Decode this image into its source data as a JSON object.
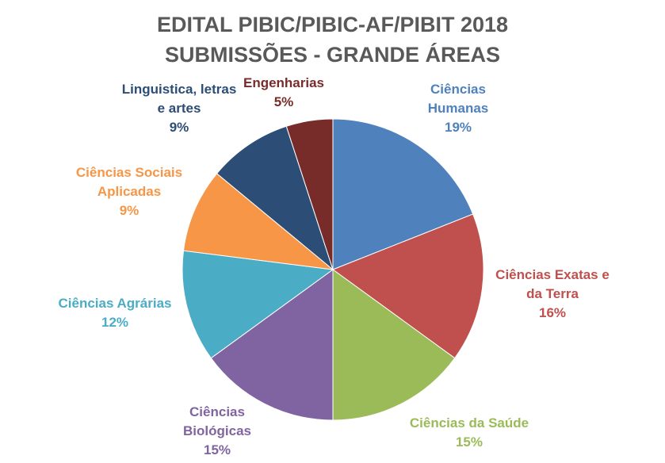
{
  "chart_data": {
    "type": "pie",
    "title": [
      "EDITAL PIBIC/PIBIC-AF/PIBIT 2018",
      "SUBMISSÕES - GRANDE ÁREAS"
    ],
    "start_angle": "top",
    "direction": "clockwise",
    "slices": [
      {
        "label": [
          "Ciências",
          "Humanas"
        ],
        "value": 19,
        "value_label": "19%",
        "color": "#4F81BD"
      },
      {
        "label": [
          "Ciências Exatas e",
          "da Terra"
        ],
        "value": 16,
        "value_label": "16%",
        "color": "#C0504D"
      },
      {
        "label": [
          "Ciências da Saúde"
        ],
        "value": 15,
        "value_label": "15%",
        "color": "#9BBB59"
      },
      {
        "label": [
          "Ciências",
          "Biológicas"
        ],
        "value": 15,
        "value_label": "15%",
        "color": "#8064A2"
      },
      {
        "label": [
          "Ciências Agrárias"
        ],
        "value": 12,
        "value_label": "12%",
        "color": "#4BACC6"
      },
      {
        "label": [
          "Ciências Sociais",
          "Aplicadas"
        ],
        "value": 9,
        "value_label": "9%",
        "color": "#F79646"
      },
      {
        "label": [
          "Linguistica, letras",
          "e artes"
        ],
        "value": 9,
        "value_label": "9%",
        "color": "#2C4D75"
      },
      {
        "label": [
          "Engenharias"
        ],
        "value": 5,
        "value_label": "5%",
        "color": "#772C2A"
      }
    ],
    "legend": "none"
  }
}
